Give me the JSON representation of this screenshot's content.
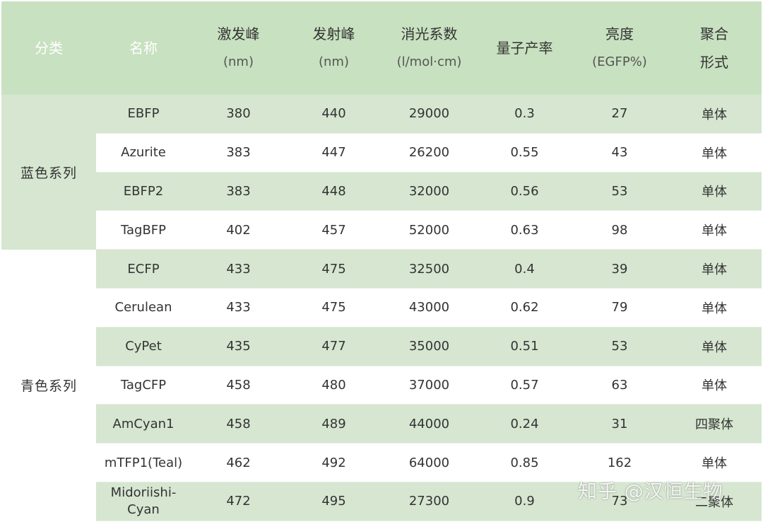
{
  "table": {
    "headers": [
      {
        "main": "分类",
        "sub": ""
      },
      {
        "main": "名称",
        "sub": ""
      },
      {
        "main": "激发峰",
        "sub": "(nm)"
      },
      {
        "main": "发射峰",
        "sub": "(nm)"
      },
      {
        "main": "消光系数",
        "sub": "(l/mol·cm)"
      },
      {
        "main": "量子产率",
        "sub": ""
      },
      {
        "main": "亮度",
        "sub": "(EGFP%)"
      },
      {
        "main": "聚合",
        "sub": "形式"
      }
    ],
    "groups": [
      {
        "category": "蓝色系列",
        "rows": [
          {
            "name": "EBFP",
            "ex": "380",
            "em": "440",
            "ec": "29000",
            "qy": "0.3",
            "brightness": "27",
            "form": "单体"
          },
          {
            "name": "Azurite",
            "ex": "383",
            "em": "447",
            "ec": "26200",
            "qy": "0.55",
            "brightness": "43",
            "form": "单体"
          },
          {
            "name": "EBFP2",
            "ex": "383",
            "em": "448",
            "ec": "32000",
            "qy": "0.56",
            "brightness": "53",
            "form": "单体"
          },
          {
            "name": "TagBFP",
            "ex": "402",
            "em": "457",
            "ec": "52000",
            "qy": "0.63",
            "brightness": "98",
            "form": "单体"
          }
        ]
      },
      {
        "category": "青色系列",
        "rows": [
          {
            "name": "ECFP",
            "ex": "433",
            "em": "475",
            "ec": "32500",
            "qy": "0.4",
            "brightness": "39",
            "form": "单体"
          },
          {
            "name": "Cerulean",
            "ex": "433",
            "em": "475",
            "ec": "43000",
            "qy": "0.62",
            "brightness": "79",
            "form": "单体"
          },
          {
            "name": "CyPet",
            "ex": "435",
            "em": "477",
            "ec": "35000",
            "qy": "0.51",
            "brightness": "53",
            "form": "单体"
          },
          {
            "name": "TagCFP",
            "ex": "458",
            "em": "480",
            "ec": "37000",
            "qy": "0.57",
            "brightness": "63",
            "form": "单体"
          },
          {
            "name": "AmCyan1",
            "ex": "458",
            "em": "489",
            "ec": "44000",
            "qy": "0.24",
            "brightness": "31",
            "form": "四聚体"
          },
          {
            "name": "mTFP1(Teal)",
            "ex": "462",
            "em": "492",
            "ec": "64000",
            "qy": "0.85",
            "brightness": "162",
            "form": "单体"
          },
          {
            "name": "Midoriishi-Cyan",
            "name_lines": [
              "Midoriishi-",
              "Cyan"
            ],
            "ex": "472",
            "em": "495",
            "ec": "27300",
            "qy": "0.9",
            "brightness": "73",
            "form": "二聚体"
          }
        ]
      }
    ]
  },
  "watermark": "知乎 @汉恒生物",
  "colors": {
    "header_bg": "#c8e1c0",
    "row_shade": "#d6e6d1",
    "row_plain": "#ffffff"
  }
}
